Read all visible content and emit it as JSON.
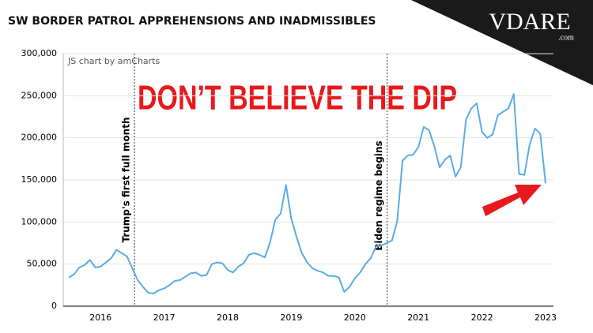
{
  "chart_data": {
    "type": "line",
    "title": "SW BORDER PATROL APPREHENSIONS AND INADMISSIBLES",
    "credit": "JS chart by amCharts",
    "headline": "DON’T BELIEVE THE DIP",
    "logo": "VDARE",
    "logo_suffix": ".com",
    "annotations": [
      "Trump's first full month",
      "Biden regime begins"
    ],
    "categories": [
      null,
      null,
      null,
      null,
      null,
      null,
      "2016",
      null,
      null,
      null,
      null,
      null,
      null,
      null,
      null,
      null,
      null,
      null,
      "2017",
      null,
      null,
      null,
      null,
      null,
      null,
      null,
      null,
      null,
      null,
      null,
      "2018",
      null,
      null,
      null,
      null,
      null,
      null,
      null,
      null,
      null,
      null,
      null,
      "2019",
      null,
      null,
      null,
      null,
      null,
      null,
      null,
      null,
      null,
      null,
      null,
      "2020",
      null,
      null,
      null,
      null,
      null,
      null,
      null,
      null,
      null,
      null,
      null,
      "2021",
      null,
      null,
      null,
      null,
      null,
      null,
      null,
      null,
      null,
      null,
      null,
      "2022",
      null,
      null,
      null,
      null,
      null,
      null,
      null,
      null,
      null,
      null,
      null,
      "2023"
    ],
    "series": [
      {
        "color": "#5aace6",
        "values": [
          34000,
          38000,
          46000,
          49000,
          55000,
          46000,
          47000,
          52000,
          57000,
          67000,
          63000,
          59000,
          45000,
          31000,
          23000,
          16000,
          15000,
          19000,
          21000,
          25000,
          30000,
          31000,
          35000,
          39000,
          40000,
          36000,
          37000,
          50000,
          52000,
          51000,
          43000,
          40000,
          47000,
          51000,
          61000,
          63000,
          61000,
          58000,
          76000,
          103000,
          110000,
          144000,
          104000,
          82000,
          63000,
          52000,
          45000,
          42000,
          40000,
          36000,
          36000,
          34000,
          17000,
          23000,
          33000,
          40000,
          50000,
          57000,
          71000,
          72000,
          75000,
          78000,
          101000,
          173000,
          179000,
          180000,
          189000,
          213000,
          209000,
          190000,
          165000,
          174000,
          179000,
          154000,
          165000,
          222000,
          235000,
          241000,
          207000,
          200000,
          204000,
          227000,
          231000,
          235000,
          252000,
          157000,
          156000,
          192000,
          211000,
          205000,
          146000
        ]
      }
    ],
    "ylim": [
      0,
      300000
    ],
    "yticks": [
      0,
      {
        "value": 50000,
        "label": "50,000"
      },
      {
        "value": 100000,
        "label": "100,000"
      },
      {
        "value": 150000,
        "label": "150,000"
      },
      {
        "value": 200000,
        "label": "200,000"
      },
      {
        "value": 250000,
        "label": "250,000"
      },
      {
        "value": 300000,
        "label": "300,000"
      }
    ],
    "grid": true
  }
}
